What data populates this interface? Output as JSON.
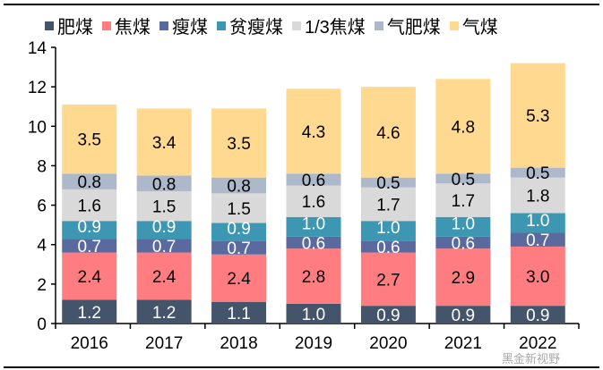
{
  "chart_data": {
    "type": "bar",
    "stacked": true,
    "categories": [
      "2016",
      "2017",
      "2018",
      "2019",
      "2020",
      "2021",
      "2022"
    ],
    "series": [
      {
        "name": "肥煤",
        "color": "#44546A",
        "values": [
          1.2,
          1.2,
          1.1,
          1.0,
          0.9,
          0.9,
          0.9
        ]
      },
      {
        "name": "焦煤",
        "color": "#FF7C80",
        "values": [
          2.4,
          2.4,
          2.4,
          2.8,
          2.7,
          2.9,
          3.0
        ]
      },
      {
        "name": "瘦煤",
        "color": "#5A6A9F",
        "values": [
          0.7,
          0.7,
          0.7,
          0.6,
          0.6,
          0.6,
          0.7
        ]
      },
      {
        "name": "贫瘦煤",
        "color": "#3E97B2",
        "values": [
          0.9,
          0.9,
          0.9,
          1.0,
          1.0,
          1.0,
          1.0
        ]
      },
      {
        "name": "1/3焦煤",
        "color": "#D9D9D9",
        "values": [
          1.6,
          1.5,
          1.5,
          1.6,
          1.7,
          1.7,
          1.8
        ]
      },
      {
        "name": "气肥煤",
        "color": "#ADB9CA",
        "values": [
          0.8,
          0.8,
          0.8,
          0.6,
          0.5,
          0.5,
          0.5
        ]
      },
      {
        "name": "气煤",
        "color": "#FFD98F",
        "values": [
          3.5,
          3.4,
          3.5,
          4.3,
          4.6,
          4.8,
          5.3
        ]
      }
    ],
    "yticks": [
      0,
      2,
      4,
      6,
      8,
      10,
      12,
      14
    ],
    "ylim": [
      0,
      14
    ],
    "legend": "top",
    "grid": false,
    "title": "",
    "xlabel": "",
    "ylabel": ""
  },
  "watermark": "黑金新视野"
}
